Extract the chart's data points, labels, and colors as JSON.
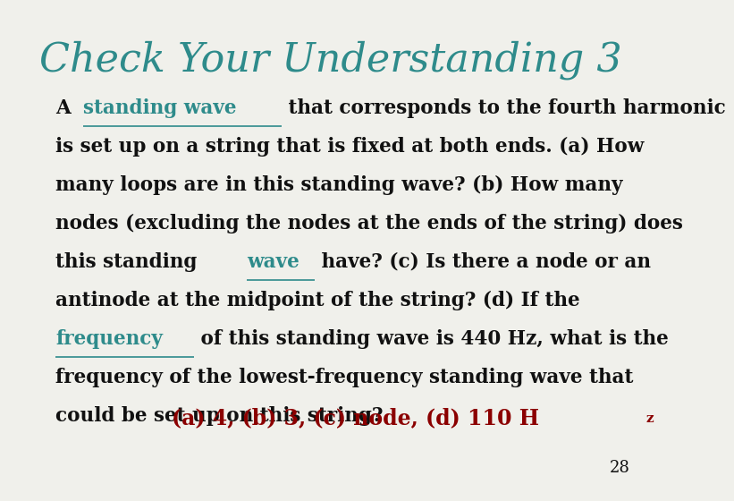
{
  "title": "Check Your Understanding 3",
  "title_color": "#2E8B8B",
  "title_fontsize": 32,
  "body_fontsize": 15.5,
  "answer_fontsize": 17,
  "link_color": "#2E8B8B",
  "answer_color": "#8B0000",
  "body_color": "#111111",
  "page_number": "28",
  "background_color": "#f0f0eb",
  "lines": [
    [
      [
        "A ",
        "#111111",
        false
      ],
      [
        "standing wave",
        "#2E8B8B",
        true
      ],
      [
        " that corresponds to the fourth harmonic",
        "#111111",
        false
      ]
    ],
    [
      [
        "is set up on a string that is fixed at both ends. (a) How",
        "#111111",
        false
      ]
    ],
    [
      [
        "many loops are in this standing wave? (b) How many",
        "#111111",
        false
      ]
    ],
    [
      [
        "nodes (excluding the nodes at the ends of the string) does",
        "#111111",
        false
      ]
    ],
    [
      [
        "this standing ",
        "#111111",
        false
      ],
      [
        "wave",
        "#2E8B8B",
        true
      ],
      [
        " have? (c) Is there a node or an",
        "#111111",
        false
      ]
    ],
    [
      [
        "antinode at the midpoint of the string? (d) If the",
        "#111111",
        false
      ]
    ],
    [
      [
        "frequency",
        "#2E8B8B",
        true
      ],
      [
        " of this standing wave is 440 Hz, what is the",
        "#111111",
        false
      ]
    ],
    [
      [
        "frequency of the lowest-frequency standing wave that",
        "#111111",
        false
      ]
    ],
    [
      [
        "could be set up on this string?",
        "#111111",
        false
      ]
    ]
  ],
  "answer_main": "(a) 4, (b) 3, (c) node, (d) 110 H",
  "answer_sub": "z"
}
